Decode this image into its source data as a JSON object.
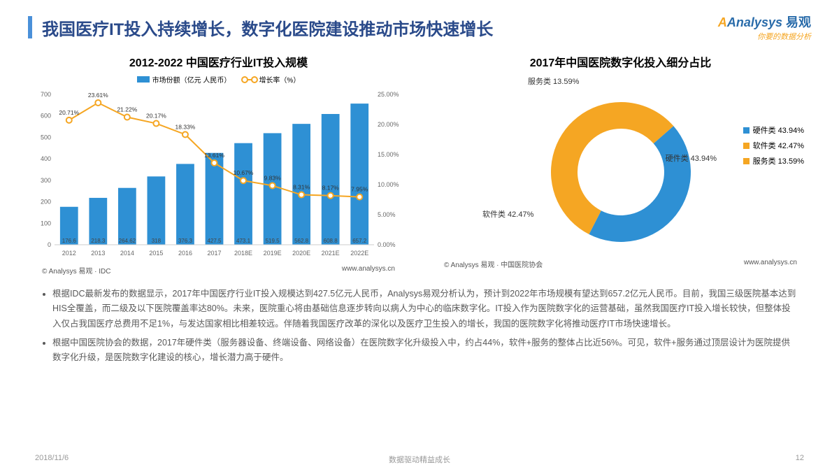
{
  "header": {
    "title": "我国医疗IT投入持续增长，数字化医院建设推动市场快速增长",
    "logo_main": "Analysys",
    "logo_cn": "易观",
    "logo_tag": "你要的数据分析"
  },
  "bar_chart": {
    "type": "bar+line",
    "title": "2012-2022 中国医疗行业IT投入规模",
    "legend_bar": "市场份额（亿元 人民币）",
    "legend_line": "增长率（%）",
    "years": [
      "2012",
      "2013",
      "2014",
      "2015",
      "2016",
      "2017",
      "2018E",
      "2019E",
      "2020E",
      "2021E",
      "2022E"
    ],
    "bar_values": [
      176.6,
      218.3,
      264.62,
      318,
      376.3,
      427.5,
      473.1,
      519.5,
      562.8,
      608.8,
      657.2
    ],
    "line_values": [
      20.71,
      23.61,
      21.22,
      20.17,
      18.33,
      13.61,
      10.67,
      9.83,
      8.31,
      8.17,
      7.95
    ],
    "y1_max": 700,
    "y1_step": 100,
    "y2_max": 25,
    "y2_step": 5,
    "bar_color": "#2e90d4",
    "line_color": "#f5a623",
    "credit_left": "© Analysys 易观 · IDC",
    "credit_right": "www.analysys.cn"
  },
  "donut_chart": {
    "type": "donut",
    "title": "2017年中国医院数字化投入细分占比",
    "slices": [
      {
        "label": "硬件类",
        "pct": 43.94,
        "color": "#2e90d4"
      },
      {
        "label": "软件类",
        "pct": 42.47,
        "color": "#f5a623"
      },
      {
        "label": "服务类",
        "pct": 13.59,
        "color": "#f5a623"
      }
    ],
    "inner_label": "硬件类 43.94%",
    "label_top": "服务类 13.59%",
    "label_bottom": "软件类 42.47%",
    "legend_items": [
      "硬件类 43.94%",
      "软件类 42.47%",
      "服务类 13.59%"
    ],
    "legend_colors": [
      "#2e90d4",
      "#f5a623",
      "#f5a623"
    ],
    "credit_left": "© Analysys 易观 · 中国医院协会",
    "credit_right": "www.analysys.cn"
  },
  "bullets": [
    "根据IDC最新发布的数据显示，2017年中国医疗行业IT投入规模达到427.5亿元人民币，Analysys易观分析认为，预计到2022年市场规模有望达到657.2亿元人民币。目前，我国三级医院基本达到HIS全覆盖，而二级及以下医院覆盖率达80%。未来，医院重心将由基础信息逐步转向以病人为中心的临床数字化。IT投入作为医院数字化的运营基础，虽然我国医疗IT投入增长较快，但整体投入仅占我国医疗总费用不足1%，与发达国家相比相差较远。伴随着我国医疗改革的深化以及医疗卫生投入的增长，我国的医院数字化将推动医疗IT市场快速增长。",
    "根据中国医院协会的数据，2017年硬件类（服务器设备、终端设备、网络设备）在医院数字化升级投入中，约占44%，软件+服务的整体占比近56%。可见，软件+服务通过顶层设计为医院提供数字化升级，是医院数字化建设的核心，增长潜力高于硬件。"
  ],
  "footer": {
    "date": "2018/11/6",
    "mid": "数据驱动精益成长",
    "page": "12"
  }
}
